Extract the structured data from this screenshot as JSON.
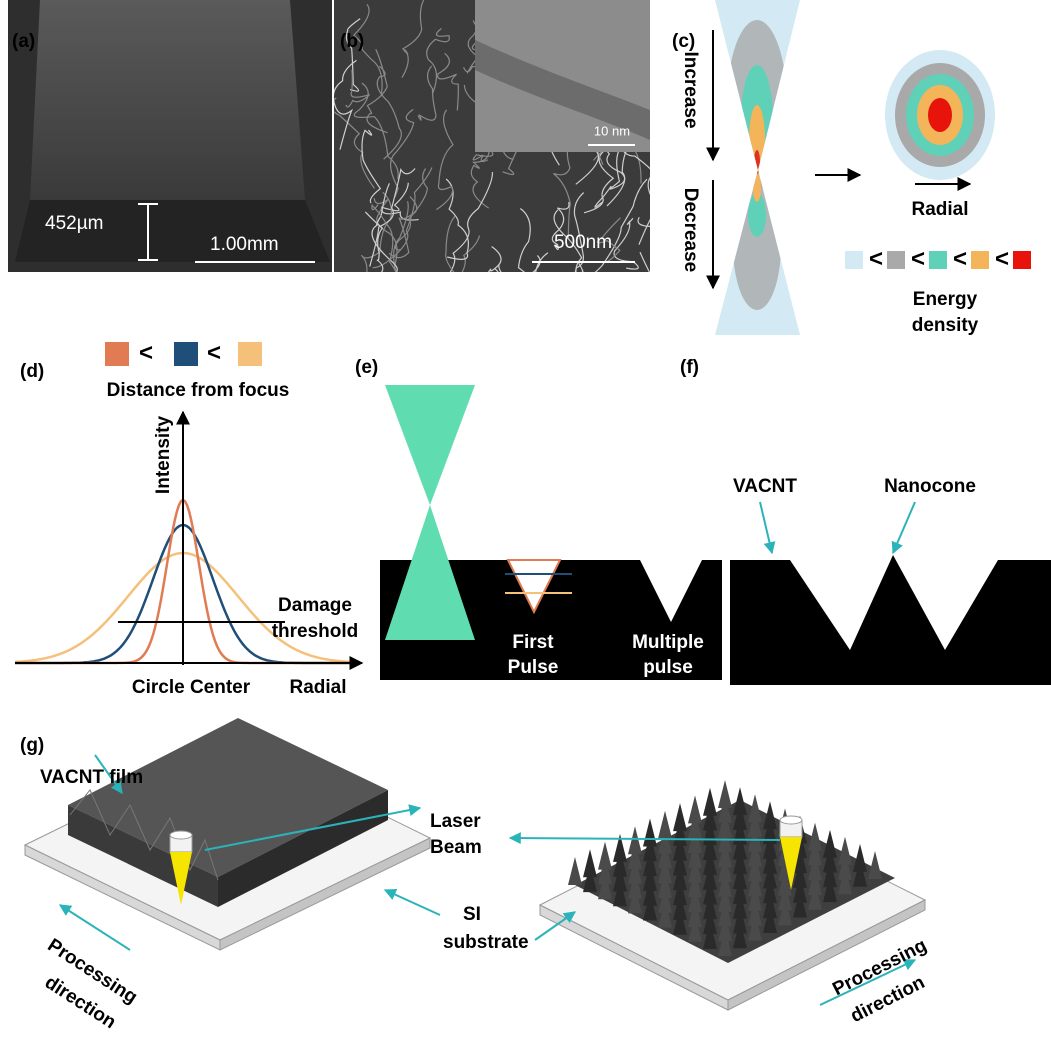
{
  "a": {
    "label": "(a)",
    "thickness": "452µm",
    "scale_bar": "1.00mm"
  },
  "b": {
    "label": "(b)",
    "inset_scale_bar": "10 nm",
    "scale_bar": "500nm"
  },
  "c": {
    "label": "(c)",
    "increase": "Increase",
    "decrease": "Decrease",
    "radial": "Radial",
    "less_than": "<",
    "legend_title": [
      "Energy",
      "density"
    ]
  },
  "d": {
    "label": "(d)",
    "less_than": "<",
    "legend_title": "Distance from focus",
    "y_axis": "Intensity",
    "threshold": [
      "Damage",
      "threshold"
    ],
    "x_center": "Circle Center",
    "x_axis": "Radial"
  },
  "e": {
    "label": "(e)",
    "first_pulse": [
      "First",
      "Pulse"
    ],
    "multiple_pulse": [
      "Multiple",
      "pulse"
    ]
  },
  "f": {
    "label": "(f)",
    "vacnt": "VACNT",
    "nanocone": "Nanocone"
  },
  "g": {
    "label": "(g)",
    "film": "VACNT film",
    "laser_beam": [
      "Laser",
      "Beam"
    ],
    "substrate": [
      "SI",
      "substrate"
    ],
    "processing_left": [
      "Processing",
      "direction"
    ],
    "processing_right": [
      "Processing",
      "direction"
    ]
  }
}
